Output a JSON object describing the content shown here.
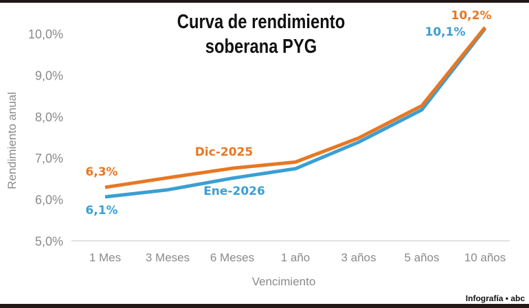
{
  "chart_data": {
    "type": "line",
    "title_line1": "Curva de rendimiento",
    "title_line2": "soberana PYG",
    "xlabel": "Vencimiento",
    "ylabel": "Rendimiento anual",
    "ylim": [
      5,
      10
    ],
    "yticks": [
      5,
      6,
      7,
      8,
      9,
      10
    ],
    "ytick_labels": [
      "5,0%",
      "6,0%",
      "7,0%",
      "8,0%",
      "9,0%",
      "10,0%"
    ],
    "categories": [
      "1 Mes",
      "3 Meses",
      "6 Meses",
      "1 año",
      "3 años",
      "5 años",
      "10 años"
    ],
    "series": [
      {
        "name": "Dic-2025",
        "color": "#e87722",
        "values": [
          6.29,
          6.52,
          6.75,
          6.9,
          7.48,
          8.26,
          10.15
        ],
        "start_label": "6,3%",
        "end_label": "10,2%"
      },
      {
        "name": "Ene-2026",
        "color": "#3a9fd4",
        "values": [
          6.06,
          6.23,
          6.51,
          6.74,
          7.38,
          8.16,
          10.12
        ],
        "start_label": "6,1%",
        "end_label": "10,1%"
      }
    ],
    "grid": false
  },
  "credit": "Infografía • abc"
}
